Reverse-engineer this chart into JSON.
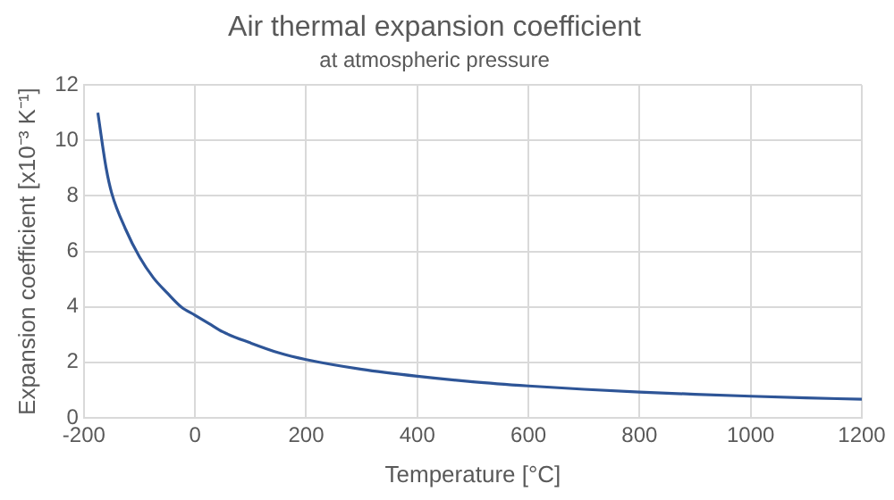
{
  "chart_data": {
    "type": "line",
    "title": "Air thermal expansion coefficient",
    "subtitle": "at atmospheric pressure",
    "xlabel": "Temperature [°C]",
    "ylabel": "Expansion coefficient [x10⁻³ K⁻¹]",
    "x": [
      -175,
      -160,
      -150,
      -125,
      -100,
      -75,
      -50,
      -25,
      0,
      25,
      50,
      100,
      150,
      200,
      300,
      400,
      500,
      600,
      700,
      800,
      900,
      1000,
      1100,
      1200
    ],
    "series": [
      {
        "color": "#2e5597",
        "values": [
          11.0,
          9.0,
          8.1,
          6.8,
          5.8,
          5.05,
          4.5,
          4.0,
          3.7,
          3.4,
          3.1,
          2.7,
          2.35,
          2.1,
          1.75,
          1.5,
          1.3,
          1.15,
          1.03,
          0.93,
          0.85,
          0.78,
          0.72,
          0.67
        ]
      }
    ],
    "xlim": [
      -200,
      1200
    ],
    "xticks": [
      -200,
      0,
      200,
      400,
      600,
      800,
      1000,
      1200
    ],
    "ylim": [
      0,
      12
    ],
    "yticks": [
      0,
      2,
      4,
      6,
      8,
      10,
      12
    ],
    "grid": true,
    "legend": false,
    "marker": "none",
    "line_style": "solid"
  }
}
